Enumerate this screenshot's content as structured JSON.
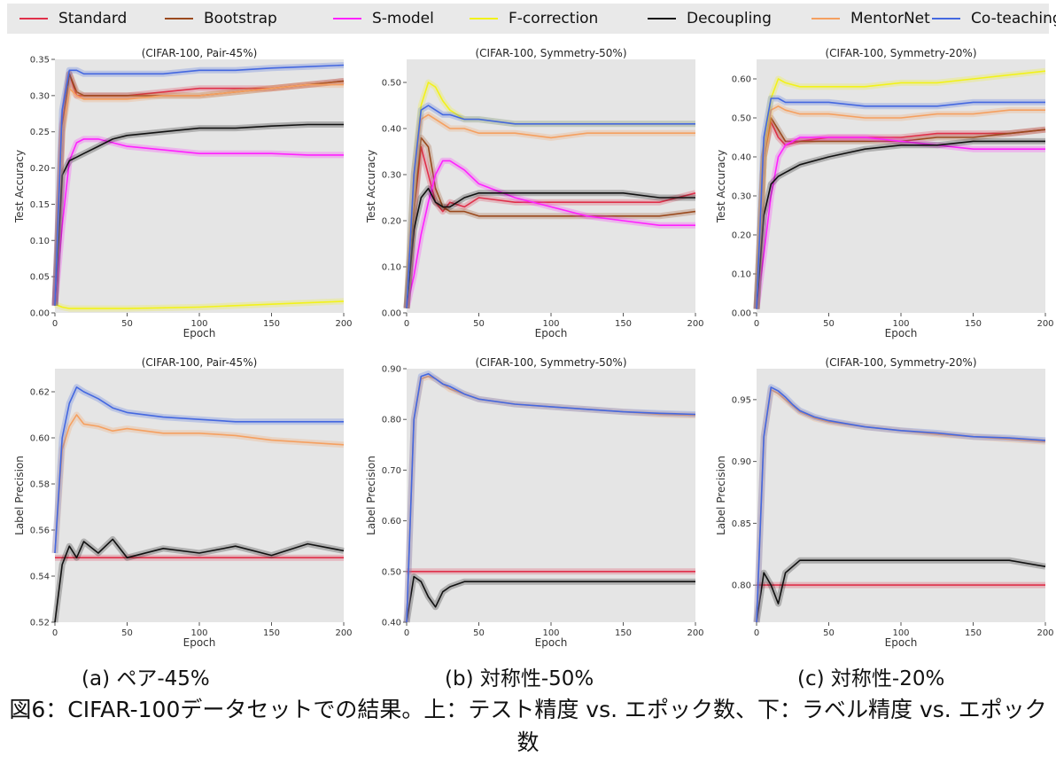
{
  "legend": [
    {
      "label": "Standard",
      "color": "#e0304a"
    },
    {
      "label": "Bootstrap",
      "color": "#9a4a1e"
    },
    {
      "label": "S-model",
      "color": "#ff22ff"
    },
    {
      "label": "F-correction",
      "color": "#f2f21a"
    },
    {
      "label": "Decoupling",
      "color": "#111111"
    },
    {
      "label": "MentorNet",
      "color": "#f5a060"
    },
    {
      "label": "Co-teaching",
      "color": "#4468e0"
    }
  ],
  "subcaptions": [
    "(a) ペア-45%",
    "(b) 対称性-50%",
    "(c) 対称性-20%"
  ],
  "caption": "図6：CIFAR-100データセットでの結果。上：テスト精度 vs. エポック数、下：ラベル精度 vs. エポック数",
  "chart_data": [
    {
      "type": "line",
      "title": "(CIFAR-100, Pair-45%)",
      "xlabel": "Epoch",
      "ylabel": "Test Accuracy",
      "xlim": [
        0,
        200
      ],
      "ylim": [
        0,
        0.35
      ],
      "xticks": [
        0,
        50,
        100,
        150,
        200
      ],
      "yticks": [
        0.0,
        0.05,
        0.1,
        0.15,
        0.2,
        0.25,
        0.3,
        0.35
      ],
      "ytick_labels": [
        "0.00",
        "0.05",
        "0.10",
        "0.15",
        "0.20",
        "0.25",
        "0.30",
        "0.35"
      ],
      "x": [
        0,
        5,
        10,
        15,
        20,
        30,
        40,
        50,
        75,
        100,
        125,
        150,
        175,
        200
      ],
      "series": [
        {
          "name": "Standard",
          "values": [
            0.01,
            0.26,
            0.33,
            0.3,
            0.3,
            0.3,
            0.3,
            0.3,
            0.305,
            0.31,
            0.31,
            0.31,
            0.315,
            0.32
          ]
        },
        {
          "name": "Bootstrap",
          "values": [
            0.01,
            0.25,
            0.33,
            0.305,
            0.3,
            0.3,
            0.3,
            0.3,
            0.3,
            0.3,
            0.305,
            0.31,
            0.315,
            0.32
          ]
        },
        {
          "name": "S-model",
          "values": [
            0.01,
            0.12,
            0.21,
            0.235,
            0.24,
            0.24,
            0.235,
            0.23,
            0.225,
            0.22,
            0.22,
            0.22,
            0.218,
            0.218
          ]
        },
        {
          "name": "F-correction",
          "values": [
            0.012,
            0.008,
            0.006,
            0.006,
            0.006,
            0.006,
            0.006,
            0.006,
            0.007,
            0.008,
            0.01,
            0.012,
            0.014,
            0.016
          ]
        },
        {
          "name": "Decoupling",
          "values": [
            0.01,
            0.19,
            0.21,
            0.215,
            0.22,
            0.23,
            0.24,
            0.245,
            0.25,
            0.255,
            0.255,
            0.258,
            0.26,
            0.26
          ]
        },
        {
          "name": "MentorNet",
          "values": [
            0.01,
            0.25,
            0.31,
            0.3,
            0.295,
            0.295,
            0.295,
            0.295,
            0.3,
            0.3,
            0.305,
            0.31,
            0.315,
            0.315
          ]
        },
        {
          "name": "Co-teaching",
          "values": [
            0.01,
            0.28,
            0.335,
            0.335,
            0.33,
            0.33,
            0.33,
            0.33,
            0.33,
            0.335,
            0.335,
            0.338,
            0.34,
            0.342
          ]
        }
      ]
    },
    {
      "type": "line",
      "title": "(CIFAR-100, Symmetry-50%)",
      "xlabel": "Epoch",
      "ylabel": "Test Accuracy",
      "xlim": [
        0,
        200
      ],
      "ylim": [
        0,
        0.55
      ],
      "xticks": [
        0,
        50,
        100,
        150,
        200
      ],
      "yticks": [
        0.0,
        0.1,
        0.2,
        0.3,
        0.4,
        0.5
      ],
      "ytick_labels": [
        "0.00",
        "0.10",
        "0.20",
        "0.30",
        "0.40",
        "0.50"
      ],
      "x": [
        0,
        5,
        10,
        15,
        20,
        25,
        30,
        40,
        50,
        75,
        100,
        125,
        150,
        175,
        200
      ],
      "series": [
        {
          "name": "Standard",
          "values": [
            0.01,
            0.22,
            0.36,
            0.3,
            0.24,
            0.22,
            0.24,
            0.23,
            0.25,
            0.24,
            0.24,
            0.24,
            0.24,
            0.24,
            0.26
          ]
        },
        {
          "name": "Bootstrap",
          "values": [
            0.01,
            0.22,
            0.38,
            0.36,
            0.27,
            0.23,
            0.22,
            0.22,
            0.21,
            0.21,
            0.21,
            0.21,
            0.21,
            0.21,
            0.22
          ]
        },
        {
          "name": "S-model",
          "values": [
            0.01,
            0.08,
            0.17,
            0.24,
            0.3,
            0.33,
            0.33,
            0.31,
            0.28,
            0.25,
            0.23,
            0.21,
            0.2,
            0.19,
            0.19
          ]
        },
        {
          "name": "F-correction",
          "values": [
            0.01,
            0.3,
            0.45,
            0.5,
            0.49,
            0.46,
            0.44,
            0.42,
            0.42,
            0.41,
            0.41,
            0.41,
            0.41,
            0.41,
            0.41
          ]
        },
        {
          "name": "Decoupling",
          "values": [
            0.01,
            0.18,
            0.25,
            0.27,
            0.24,
            0.23,
            0.23,
            0.25,
            0.26,
            0.26,
            0.26,
            0.26,
            0.26,
            0.25,
            0.25
          ]
        },
        {
          "name": "MentorNet",
          "values": [
            0.01,
            0.3,
            0.42,
            0.43,
            0.42,
            0.41,
            0.4,
            0.4,
            0.39,
            0.39,
            0.38,
            0.39,
            0.39,
            0.39,
            0.39
          ]
        },
        {
          "name": "Co-teaching",
          "values": [
            0.01,
            0.3,
            0.44,
            0.45,
            0.44,
            0.43,
            0.43,
            0.42,
            0.42,
            0.41,
            0.41,
            0.41,
            0.41,
            0.41,
            0.41
          ]
        }
      ]
    },
    {
      "type": "line",
      "title": "(CIFAR-100, Symmetry-20%)",
      "xlabel": "Epoch",
      "ylabel": "Test Accuracy",
      "xlim": [
        0,
        200
      ],
      "ylim": [
        0,
        0.65
      ],
      "xticks": [
        0,
        50,
        100,
        150,
        200
      ],
      "yticks": [
        0.0,
        0.1,
        0.2,
        0.3,
        0.4,
        0.5,
        0.6
      ],
      "ytick_labels": [
        "0.00",
        "0.10",
        "0.20",
        "0.30",
        "0.40",
        "0.50",
        "0.60"
      ],
      "x": [
        0,
        5,
        10,
        15,
        20,
        30,
        50,
        75,
        100,
        125,
        150,
        175,
        200
      ],
      "series": [
        {
          "name": "Standard",
          "values": [
            0.01,
            0.4,
            0.49,
            0.45,
            0.43,
            0.44,
            0.45,
            0.45,
            0.45,
            0.46,
            0.46,
            0.46,
            0.47
          ]
        },
        {
          "name": "Bootstrap",
          "values": [
            0.01,
            0.4,
            0.5,
            0.47,
            0.44,
            0.44,
            0.44,
            0.44,
            0.44,
            0.45,
            0.45,
            0.46,
            0.47
          ]
        },
        {
          "name": "S-model",
          "values": [
            0.01,
            0.15,
            0.3,
            0.4,
            0.43,
            0.45,
            0.45,
            0.45,
            0.44,
            0.43,
            0.42,
            0.42,
            0.42
          ]
        },
        {
          "name": "F-correction",
          "values": [
            0.01,
            0.4,
            0.55,
            0.6,
            0.59,
            0.58,
            0.58,
            0.58,
            0.59,
            0.59,
            0.6,
            0.61,
            0.62
          ]
        },
        {
          "name": "Decoupling",
          "values": [
            0.01,
            0.25,
            0.33,
            0.35,
            0.36,
            0.38,
            0.4,
            0.42,
            0.43,
            0.43,
            0.44,
            0.44,
            0.44
          ]
        },
        {
          "name": "MentorNet",
          "values": [
            0.01,
            0.4,
            0.52,
            0.53,
            0.52,
            0.51,
            0.51,
            0.5,
            0.5,
            0.51,
            0.51,
            0.52,
            0.52
          ]
        },
        {
          "name": "Co-teaching",
          "values": [
            0.01,
            0.45,
            0.55,
            0.55,
            0.54,
            0.54,
            0.54,
            0.53,
            0.53,
            0.53,
            0.54,
            0.54,
            0.54
          ]
        }
      ]
    },
    {
      "type": "line",
      "title": "(CIFAR-100, Pair-45%)",
      "xlabel": "Epoch",
      "ylabel": "Label Precision",
      "xlim": [
        0,
        200
      ],
      "ylim": [
        0.52,
        0.63
      ],
      "xticks": [
        0,
        50,
        100,
        150,
        200
      ],
      "yticks": [
        0.52,
        0.54,
        0.56,
        0.58,
        0.6,
        0.62
      ],
      "ytick_labels": [
        "0.52",
        "0.54",
        "0.56",
        "0.58",
        "0.60",
        "0.62"
      ],
      "x": [
        0,
        5,
        10,
        15,
        20,
        30,
        40,
        50,
        75,
        100,
        125,
        150,
        175,
        200
      ],
      "series": [
        {
          "name": "Standard",
          "values": [
            0.548,
            0.548,
            0.548,
            0.548,
            0.548,
            0.548,
            0.548,
            0.548,
            0.548,
            0.548,
            0.548,
            0.548,
            0.548,
            0.548
          ]
        },
        {
          "name": "Decoupling",
          "values": [
            0.52,
            0.545,
            0.553,
            0.548,
            0.555,
            0.55,
            0.556,
            0.548,
            0.552,
            0.55,
            0.553,
            0.549,
            0.554,
            0.551
          ]
        },
        {
          "name": "MentorNet",
          "values": [
            0.55,
            0.595,
            0.605,
            0.61,
            0.606,
            0.605,
            0.603,
            0.604,
            0.602,
            0.602,
            0.601,
            0.599,
            0.598,
            0.597
          ]
        },
        {
          "name": "Co-teaching",
          "values": [
            0.55,
            0.6,
            0.615,
            0.622,
            0.62,
            0.617,
            0.613,
            0.611,
            0.609,
            0.608,
            0.607,
            0.607,
            0.607,
            0.607
          ]
        }
      ]
    },
    {
      "type": "line",
      "title": "(CIFAR-100, Symmetry-50%)",
      "xlabel": "Epoch",
      "ylabel": "Label Precision",
      "xlim": [
        0,
        200
      ],
      "ylim": [
        0.4,
        0.9
      ],
      "xticks": [
        0,
        50,
        100,
        150,
        200
      ],
      "yticks": [
        0.4,
        0.5,
        0.6,
        0.7,
        0.8,
        0.9
      ],
      "ytick_labels": [
        "0.40",
        "0.50",
        "0.60",
        "0.70",
        "0.80",
        "0.90"
      ],
      "x": [
        0,
        5,
        10,
        15,
        20,
        25,
        30,
        40,
        50,
        75,
        100,
        125,
        150,
        175,
        200
      ],
      "series": [
        {
          "name": "Standard",
          "values": [
            0.5,
            0.5,
            0.5,
            0.5,
            0.5,
            0.5,
            0.5,
            0.5,
            0.5,
            0.5,
            0.5,
            0.5,
            0.5,
            0.5,
            0.5
          ]
        },
        {
          "name": "Decoupling",
          "values": [
            0.4,
            0.49,
            0.48,
            0.45,
            0.43,
            0.46,
            0.47,
            0.48,
            0.48,
            0.48,
            0.48,
            0.48,
            0.48,
            0.48,
            0.48
          ]
        },
        {
          "name": "MentorNet",
          "values": [
            0.4,
            0.8,
            0.88,
            0.885,
            0.88,
            0.87,
            0.86,
            0.85,
            0.84,
            0.83,
            0.825,
            0.82,
            0.815,
            0.81,
            0.808
          ]
        },
        {
          "name": "Co-teaching",
          "values": [
            0.4,
            0.8,
            0.885,
            0.89,
            0.88,
            0.87,
            0.865,
            0.85,
            0.84,
            0.83,
            0.825,
            0.82,
            0.815,
            0.812,
            0.81
          ]
        }
      ]
    },
    {
      "type": "line",
      "title": "(CIFAR-100, Symmetry-20%)",
      "xlabel": "Epoch",
      "ylabel": "Label Precision",
      "xlim": [
        0,
        200
      ],
      "ylim": [
        0.77,
        0.975
      ],
      "xticks": [
        0,
        50,
        100,
        150,
        200
      ],
      "yticks": [
        0.8,
        0.85,
        0.9,
        0.95
      ],
      "ytick_labels": [
        "0.80",
        "0.85",
        "0.90",
        "0.95"
      ],
      "x": [
        0,
        5,
        10,
        15,
        20,
        25,
        30,
        40,
        50,
        75,
        100,
        125,
        150,
        175,
        200
      ],
      "series": [
        {
          "name": "Standard",
          "values": [
            0.8,
            0.8,
            0.8,
            0.8,
            0.8,
            0.8,
            0.8,
            0.8,
            0.8,
            0.8,
            0.8,
            0.8,
            0.8,
            0.8,
            0.8
          ]
        },
        {
          "name": "Decoupling",
          "values": [
            0.77,
            0.81,
            0.8,
            0.785,
            0.81,
            0.815,
            0.82,
            0.82,
            0.82,
            0.82,
            0.82,
            0.82,
            0.82,
            0.82,
            0.815
          ]
        },
        {
          "name": "MentorNet",
          "values": [
            0.77,
            0.92,
            0.958,
            0.955,
            0.95,
            0.945,
            0.94,
            0.935,
            0.932,
            0.928,
            0.925,
            0.922,
            0.92,
            0.918,
            0.916
          ]
        },
        {
          "name": "Co-teaching",
          "values": [
            0.77,
            0.92,
            0.96,
            0.957,
            0.952,
            0.946,
            0.941,
            0.936,
            0.933,
            0.928,
            0.925,
            0.923,
            0.92,
            0.919,
            0.917
          ]
        }
      ]
    }
  ]
}
